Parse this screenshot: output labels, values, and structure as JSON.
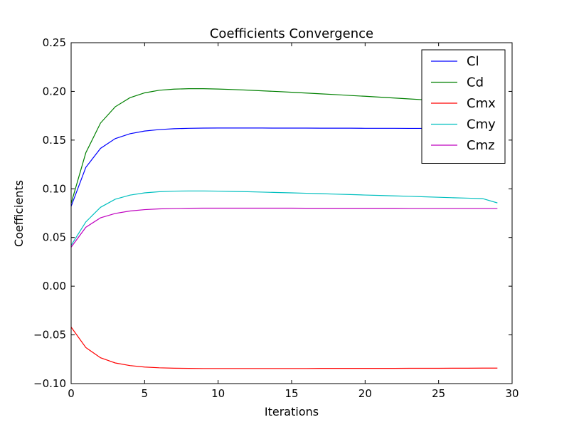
{
  "chart_data": {
    "type": "line",
    "title": "Coefficients Convergence",
    "xlabel": "Iterations",
    "ylabel": "Coefficients",
    "xlim": [
      0,
      30
    ],
    "ylim": [
      -0.1,
      0.25
    ],
    "xticks": [
      0,
      5,
      10,
      15,
      20,
      25,
      30
    ],
    "xtick_labels": [
      "0",
      "5",
      "10",
      "15",
      "20",
      "25",
      "30"
    ],
    "yticks": [
      -0.1,
      -0.05,
      0.0,
      0.05,
      0.1,
      0.15,
      0.2,
      0.25
    ],
    "ytick_labels": [
      "−0.10",
      "−0.05",
      "0.00",
      "0.05",
      "0.10",
      "0.15",
      "0.20",
      "0.25"
    ],
    "grid": false,
    "legend_position": "top-right",
    "x": [
      0,
      1,
      2,
      3,
      4,
      5,
      6,
      7,
      8,
      9,
      10,
      11,
      12,
      13,
      14,
      15,
      16,
      17,
      18,
      19,
      20,
      21,
      22,
      23,
      24,
      25,
      26,
      27,
      28,
      29
    ],
    "series": [
      {
        "name": "Cl",
        "color": "#0000ff",
        "values": [
          0.082,
          0.122,
          0.1415,
          0.1515,
          0.1565,
          0.1593,
          0.1608,
          0.1617,
          0.1621,
          0.1623,
          0.1624,
          0.1624,
          0.1624,
          0.1624,
          0.1623,
          0.1623,
          0.1623,
          0.1622,
          0.1622,
          0.1622,
          0.1621,
          0.1621,
          0.1621,
          0.162,
          0.162,
          0.162,
          0.162,
          0.162,
          0.162,
          0.162
        ]
      },
      {
        "name": "Cd",
        "color": "#008000",
        "values": [
          0.085,
          0.137,
          0.1675,
          0.1842,
          0.1935,
          0.1985,
          0.2012,
          0.2023,
          0.2028,
          0.2028,
          0.2024,
          0.2019,
          0.2013,
          0.2006,
          0.1999,
          0.1991,
          0.1983,
          0.1975,
          0.1967,
          0.1958,
          0.195,
          0.1941,
          0.1932,
          0.1923,
          0.1914,
          0.1905,
          0.1896,
          0.1887,
          0.1878,
          0.1869
        ]
      },
      {
        "name": "Cmx",
        "color": "#ff0000",
        "values": [
          -0.042,
          -0.063,
          -0.0735,
          -0.0788,
          -0.0815,
          -0.083,
          -0.0838,
          -0.0842,
          -0.0844,
          -0.0845,
          -0.0845,
          -0.0845,
          -0.0845,
          -0.0845,
          -0.0845,
          -0.0845,
          -0.0845,
          -0.0844,
          -0.0844,
          -0.0844,
          -0.0844,
          -0.0844,
          -0.0844,
          -0.0843,
          -0.0843,
          -0.0843,
          -0.0842,
          -0.0842,
          -0.0841,
          -0.0841
        ]
      },
      {
        "name": "Cmy",
        "color": "#00bfbf",
        "values": [
          0.042,
          0.066,
          0.081,
          0.0893,
          0.0935,
          0.0958,
          0.097,
          0.0976,
          0.0978,
          0.0978,
          0.0976,
          0.0973,
          0.097,
          0.0966,
          0.0962,
          0.0958,
          0.0954,
          0.095,
          0.0945,
          0.0941,
          0.0936,
          0.0932,
          0.0927,
          0.0923,
          0.0918,
          0.0913,
          0.0908,
          0.0904,
          0.0899,
          0.0855
        ]
      },
      {
        "name": "Cmz",
        "color": "#bf00bf",
        "values": [
          0.04,
          0.0605,
          0.0702,
          0.0747,
          0.0772,
          0.0786,
          0.0794,
          0.0798,
          0.08,
          0.0801,
          0.0801,
          0.0801,
          0.0801,
          0.0801,
          0.0801,
          0.0801,
          0.08,
          0.08,
          0.08,
          0.08,
          0.08,
          0.08,
          0.08,
          0.0799,
          0.0799,
          0.0799,
          0.0799,
          0.0799,
          0.0799,
          0.0798
        ]
      }
    ]
  }
}
